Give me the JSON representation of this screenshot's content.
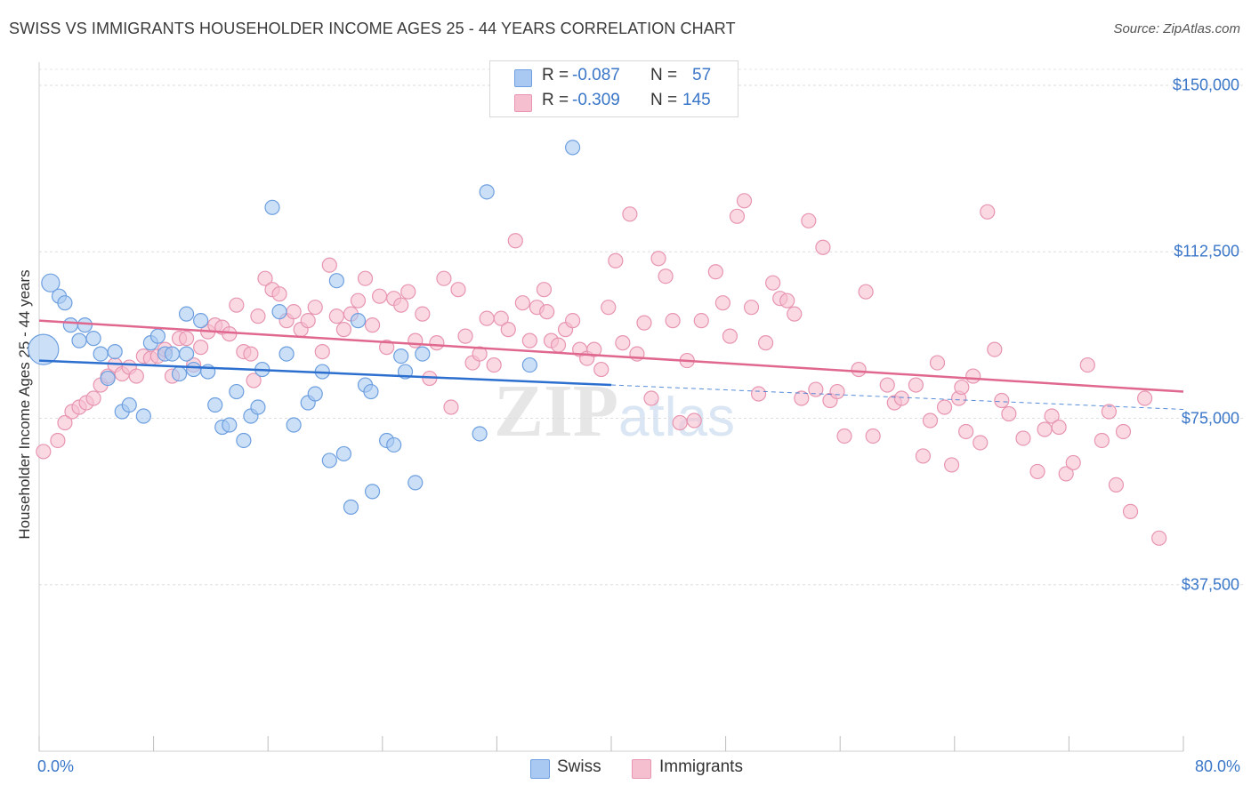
{
  "header": {
    "title": "SWISS VS IMMIGRANTS HOUSEHOLDER INCOME AGES 25 - 44 YEARS CORRELATION CHART",
    "source": "Source: ZipAtlas.com"
  },
  "watermark": "ZIPatlas",
  "legend": {
    "swiss": {
      "r_label": "R = ",
      "r_value": "-0.087",
      "n_label": "N = ",
      "n_value": "57"
    },
    "immigrants": {
      "r_label": "R = ",
      "r_value": "-0.309",
      "n_label": "N = ",
      "n_value": "145"
    }
  },
  "bottom_legend": {
    "swiss": "Swiss",
    "immigrants": "Immigrants"
  },
  "colors": {
    "swiss_fill": "#a9c9f2",
    "swiss_stroke": "#6d9fdf",
    "swiss_line": "#2d6fcf",
    "immigrants_fill": "#f6bfd0",
    "immigrants_stroke": "#e795b1",
    "immigrants_line": "#e0688f",
    "tick_text": "#3a76c8"
  },
  "chart_data": {
    "type": "scatter",
    "title": "SWISS VS IMMIGRANTS HOUSEHOLDER INCOME AGES 25 - 44 YEARS CORRELATION CHART",
    "xlabel": "",
    "ylabel": "Householder Income Ages 25 - 44 years",
    "xlim": [
      0,
      80
    ],
    "ylim": [
      0,
      155000
    ],
    "x_tick_labels": [
      "0.0%",
      "80.0%"
    ],
    "y_ticks": [
      {
        "value": 37500,
        "label": "$37,500"
      },
      {
        "value": 75000,
        "label": "$75,000"
      },
      {
        "value": 112500,
        "label": "$112,500"
      },
      {
        "value": 150000,
        "label": "$150,000"
      }
    ],
    "grid": true,
    "series": [
      {
        "name": "Swiss",
        "trend": {
          "x_start": 0,
          "y_start": 88000,
          "x_end": 40,
          "y_end": 82500,
          "dashed_to_x": 80,
          "dashed_to_y": 77000
        },
        "points": [
          {
            "x": 0.3,
            "y": 90500,
            "s": 2
          },
          {
            "x": 0.8,
            "y": 105500,
            "s": 1
          },
          {
            "x": 1.4,
            "y": 102500
          },
          {
            "x": 1.8,
            "y": 101000
          },
          {
            "x": 2.2,
            "y": 96000
          },
          {
            "x": 2.8,
            "y": 92500
          },
          {
            "x": 3.2,
            "y": 96000
          },
          {
            "x": 3.8,
            "y": 93000
          },
          {
            "x": 4.3,
            "y": 89500
          },
          {
            "x": 4.8,
            "y": 84000
          },
          {
            "x": 5.3,
            "y": 90000
          },
          {
            "x": 5.8,
            "y": 76500
          },
          {
            "x": 6.3,
            "y": 78000
          },
          {
            "x": 7.3,
            "y": 75500
          },
          {
            "x": 7.8,
            "y": 92000
          },
          {
            "x": 8.3,
            "y": 93500
          },
          {
            "x": 8.8,
            "y": 89500
          },
          {
            "x": 9.3,
            "y": 89500
          },
          {
            "x": 9.8,
            "y": 85000
          },
          {
            "x": 10.3,
            "y": 89500
          },
          {
            "x": 10.3,
            "y": 98500
          },
          {
            "x": 10.8,
            "y": 86000
          },
          {
            "x": 11.3,
            "y": 97000
          },
          {
            "x": 11.8,
            "y": 85500
          },
          {
            "x": 12.3,
            "y": 78000
          },
          {
            "x": 12.8,
            "y": 73000
          },
          {
            "x": 13.3,
            "y": 73500
          },
          {
            "x": 13.8,
            "y": 81000
          },
          {
            "x": 14.3,
            "y": 70000
          },
          {
            "x": 14.8,
            "y": 75500
          },
          {
            "x": 15.3,
            "y": 77500
          },
          {
            "x": 15.6,
            "y": 86000
          },
          {
            "x": 16.3,
            "y": 122500
          },
          {
            "x": 16.8,
            "y": 99000
          },
          {
            "x": 17.3,
            "y": 89500
          },
          {
            "x": 17.8,
            "y": 73500
          },
          {
            "x": 18.8,
            "y": 78500
          },
          {
            "x": 19.3,
            "y": 80500
          },
          {
            "x": 19.8,
            "y": 85500
          },
          {
            "x": 20.3,
            "y": 65500
          },
          {
            "x": 20.8,
            "y": 106000
          },
          {
            "x": 21.3,
            "y": 67000
          },
          {
            "x": 21.8,
            "y": 55000
          },
          {
            "x": 22.3,
            "y": 97000
          },
          {
            "x": 22.8,
            "y": 82500
          },
          {
            "x": 23.2,
            "y": 81000
          },
          {
            "x": 23.3,
            "y": 58500
          },
          {
            "x": 24.3,
            "y": 70000
          },
          {
            "x": 24.8,
            "y": 69000
          },
          {
            "x": 25.3,
            "y": 89000
          },
          {
            "x": 25.6,
            "y": 85500
          },
          {
            "x": 26.3,
            "y": 60500
          },
          {
            "x": 26.8,
            "y": 89500
          },
          {
            "x": 30.8,
            "y": 71500
          },
          {
            "x": 31.3,
            "y": 126000
          },
          {
            "x": 34.3,
            "y": 87000
          },
          {
            "x": 37.3,
            "y": 136000
          }
        ]
      },
      {
        "name": "Immigrants",
        "trend": {
          "x_start": 0,
          "y_start": 97000,
          "x_end": 80,
          "y_end": 81000
        },
        "points": [
          {
            "x": 0.3,
            "y": 67500
          },
          {
            "x": 1.3,
            "y": 70000
          },
          {
            "x": 1.8,
            "y": 74000
          },
          {
            "x": 2.3,
            "y": 76500
          },
          {
            "x": 2.8,
            "y": 77500
          },
          {
            "x": 3.3,
            "y": 78500
          },
          {
            "x": 3.8,
            "y": 79500
          },
          {
            "x": 4.3,
            "y": 82500
          },
          {
            "x": 4.8,
            "y": 84500
          },
          {
            "x": 5.3,
            "y": 87000
          },
          {
            "x": 5.8,
            "y": 85000
          },
          {
            "x": 6.3,
            "y": 86500
          },
          {
            "x": 6.8,
            "y": 84500
          },
          {
            "x": 7.3,
            "y": 89000
          },
          {
            "x": 7.8,
            "y": 88500
          },
          {
            "x": 8.3,
            "y": 89000
          },
          {
            "x": 8.8,
            "y": 90500
          },
          {
            "x": 9.3,
            "y": 84500
          },
          {
            "x": 9.8,
            "y": 93000
          },
          {
            "x": 10.3,
            "y": 93000
          },
          {
            "x": 10.8,
            "y": 87000
          },
          {
            "x": 11.3,
            "y": 91000
          },
          {
            "x": 11.8,
            "y": 94500
          },
          {
            "x": 12.3,
            "y": 96000
          },
          {
            "x": 12.8,
            "y": 95500
          },
          {
            "x": 13.3,
            "y": 94000
          },
          {
            "x": 13.8,
            "y": 100500
          },
          {
            "x": 14.3,
            "y": 90000
          },
          {
            "x": 14.8,
            "y": 89500
          },
          {
            "x": 15.3,
            "y": 98000
          },
          {
            "x": 15.8,
            "y": 106500
          },
          {
            "x": 16.3,
            "y": 104000
          },
          {
            "x": 16.8,
            "y": 103000
          },
          {
            "x": 17.3,
            "y": 97000
          },
          {
            "x": 17.8,
            "y": 99000
          },
          {
            "x": 18.3,
            "y": 95000
          },
          {
            "x": 18.8,
            "y": 97000
          },
          {
            "x": 19.3,
            "y": 100000
          },
          {
            "x": 19.8,
            "y": 90000
          },
          {
            "x": 20.3,
            "y": 109500
          },
          {
            "x": 20.8,
            "y": 98000
          },
          {
            "x": 21.3,
            "y": 95000
          },
          {
            "x": 21.8,
            "y": 98500
          },
          {
            "x": 22.3,
            "y": 101500
          },
          {
            "x": 22.8,
            "y": 106500
          },
          {
            "x": 23.3,
            "y": 96000
          },
          {
            "x": 23.8,
            "y": 102500
          },
          {
            "x": 24.3,
            "y": 91000
          },
          {
            "x": 24.8,
            "y": 102000
          },
          {
            "x": 25.3,
            "y": 100500
          },
          {
            "x": 25.8,
            "y": 103500
          },
          {
            "x": 26.3,
            "y": 92500
          },
          {
            "x": 26.8,
            "y": 98500
          },
          {
            "x": 27.3,
            "y": 84000
          },
          {
            "x": 27.8,
            "y": 92000
          },
          {
            "x": 28.3,
            "y": 106500
          },
          {
            "x": 28.8,
            "y": 77500
          },
          {
            "x": 29.3,
            "y": 104000
          },
          {
            "x": 29.8,
            "y": 93500
          },
          {
            "x": 30.3,
            "y": 87500
          },
          {
            "x": 30.8,
            "y": 89500
          },
          {
            "x": 31.3,
            "y": 97500
          },
          {
            "x": 31.8,
            "y": 87000
          },
          {
            "x": 32.3,
            "y": 97500
          },
          {
            "x": 32.8,
            "y": 95000
          },
          {
            "x": 33.3,
            "y": 115000
          },
          {
            "x": 33.8,
            "y": 101000
          },
          {
            "x": 34.3,
            "y": 92500
          },
          {
            "x": 34.8,
            "y": 100000
          },
          {
            "x": 35.3,
            "y": 104000
          },
          {
            "x": 35.8,
            "y": 92500
          },
          {
            "x": 36.3,
            "y": 91500
          },
          {
            "x": 36.8,
            "y": 95000
          },
          {
            "x": 37.3,
            "y": 97000
          },
          {
            "x": 37.8,
            "y": 90500
          },
          {
            "x": 38.3,
            "y": 88500
          },
          {
            "x": 38.8,
            "y": 90500
          },
          {
            "x": 39.3,
            "y": 86000
          },
          {
            "x": 39.8,
            "y": 100000
          },
          {
            "x": 40.3,
            "y": 110500
          },
          {
            "x": 40.8,
            "y": 92000
          },
          {
            "x": 41.3,
            "y": 121000
          },
          {
            "x": 41.8,
            "y": 89500
          },
          {
            "x": 42.3,
            "y": 96500
          },
          {
            "x": 42.8,
            "y": 79500
          },
          {
            "x": 43.3,
            "y": 111000
          },
          {
            "x": 43.8,
            "y": 107000
          },
          {
            "x": 44.3,
            "y": 97000
          },
          {
            "x": 44.8,
            "y": 74000
          },
          {
            "x": 45.3,
            "y": 88000
          },
          {
            "x": 45.8,
            "y": 74500
          },
          {
            "x": 46.3,
            "y": 97000
          },
          {
            "x": 47.3,
            "y": 108000
          },
          {
            "x": 47.8,
            "y": 101000
          },
          {
            "x": 48.3,
            "y": 93500
          },
          {
            "x": 48.8,
            "y": 120500
          },
          {
            "x": 49.3,
            "y": 124000
          },
          {
            "x": 49.8,
            "y": 100000
          },
          {
            "x": 50.3,
            "y": 80500
          },
          {
            "x": 50.8,
            "y": 92000
          },
          {
            "x": 51.3,
            "y": 105500
          },
          {
            "x": 51.8,
            "y": 102000
          },
          {
            "x": 52.3,
            "y": 101500
          },
          {
            "x": 52.8,
            "y": 98500
          },
          {
            "x": 53.3,
            "y": 79500
          },
          {
            "x": 53.8,
            "y": 119500
          },
          {
            "x": 54.3,
            "y": 81500
          },
          {
            "x": 54.8,
            "y": 113500
          },
          {
            "x": 55.3,
            "y": 79000
          },
          {
            "x": 55.8,
            "y": 81000
          },
          {
            "x": 56.3,
            "y": 71000
          },
          {
            "x": 57.3,
            "y": 86000
          },
          {
            "x": 57.8,
            "y": 103500
          },
          {
            "x": 58.3,
            "y": 71000
          },
          {
            "x": 59.3,
            "y": 82500
          },
          {
            "x": 59.8,
            "y": 78500
          },
          {
            "x": 60.3,
            "y": 79500
          },
          {
            "x": 61.3,
            "y": 82500
          },
          {
            "x": 61.8,
            "y": 66500
          },
          {
            "x": 62.3,
            "y": 74500
          },
          {
            "x": 62.8,
            "y": 87500
          },
          {
            "x": 63.3,
            "y": 77500
          },
          {
            "x": 63.8,
            "y": 64500
          },
          {
            "x": 64.3,
            "y": 79500
          },
          {
            "x": 64.8,
            "y": 72000
          },
          {
            "x": 65.3,
            "y": 84500
          },
          {
            "x": 65.8,
            "y": 69500
          },
          {
            "x": 66.3,
            "y": 121500
          },
          {
            "x": 66.8,
            "y": 90500
          },
          {
            "x": 67.3,
            "y": 79000
          },
          {
            "x": 67.8,
            "y": 76000
          },
          {
            "x": 68.8,
            "y": 70500
          },
          {
            "x": 69.8,
            "y": 63000
          },
          {
            "x": 70.3,
            "y": 72500
          },
          {
            "x": 70.8,
            "y": 75500
          },
          {
            "x": 71.3,
            "y": 73000
          },
          {
            "x": 71.8,
            "y": 62500
          },
          {
            "x": 72.3,
            "y": 65000
          },
          {
            "x": 73.3,
            "y": 87000
          },
          {
            "x": 74.3,
            "y": 70000
          },
          {
            "x": 74.8,
            "y": 76500
          },
          {
            "x": 75.3,
            "y": 60000
          },
          {
            "x": 75.8,
            "y": 72000
          },
          {
            "x": 76.3,
            "y": 54000
          },
          {
            "x": 77.3,
            "y": 79500
          },
          {
            "x": 78.3,
            "y": 48000
          },
          {
            "x": 64.5,
            "y": 82000
          },
          {
            "x": 35.5,
            "y": 99000
          },
          {
            "x": 15.0,
            "y": 83500
          }
        ]
      }
    ]
  }
}
